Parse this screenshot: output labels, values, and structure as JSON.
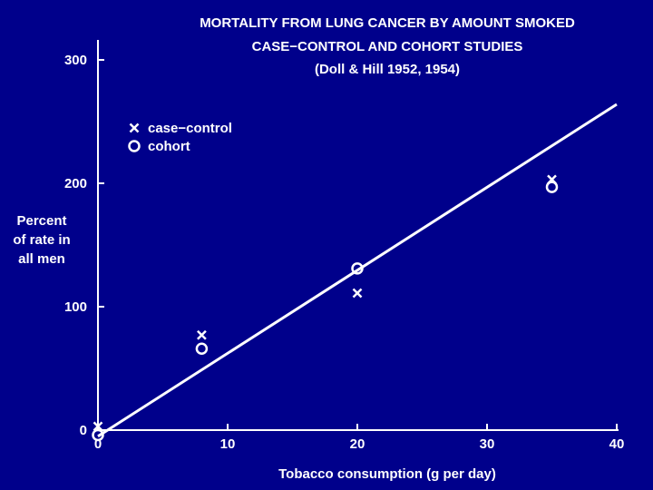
{
  "chart_data": {
    "type": "scatter",
    "title_lines": [
      "MORTALITY FROM LUNG CANCER BY AMOUNT SMOKED",
      "CASE−CONTROL AND COHORT STUDIES",
      "(Doll & Hill 1952, 1954)"
    ],
    "xlabel": "Tobacco consumption (g per day)",
    "ylabel_lines": [
      "Percent",
      "of rate in",
      "all men"
    ],
    "xlim": [
      0,
      40
    ],
    "ylim": [
      0,
      300
    ],
    "xticks": [
      0,
      10,
      20,
      30,
      40
    ],
    "yticks": [
      0,
      100,
      200,
      300
    ],
    "legend_position": "top-left",
    "colors": {
      "background": "#00008b",
      "foreground": "#ffffff"
    },
    "series": [
      {
        "name": "case−control",
        "marker": "x",
        "points": [
          {
            "x": 0,
            "y": 3
          },
          {
            "x": 8,
            "y": 77
          },
          {
            "x": 20,
            "y": 111
          },
          {
            "x": 35,
            "y": 203
          }
        ]
      },
      {
        "name": "cohort",
        "marker": "o",
        "points": [
          {
            "x": 0,
            "y": -4
          },
          {
            "x": 8,
            "y": 66
          },
          {
            "x": 20,
            "y": 131
          },
          {
            "x": 35,
            "y": 197
          }
        ]
      }
    ],
    "fit_line": {
      "x": [
        0,
        40
      ],
      "y": [
        -5,
        264
      ]
    }
  }
}
